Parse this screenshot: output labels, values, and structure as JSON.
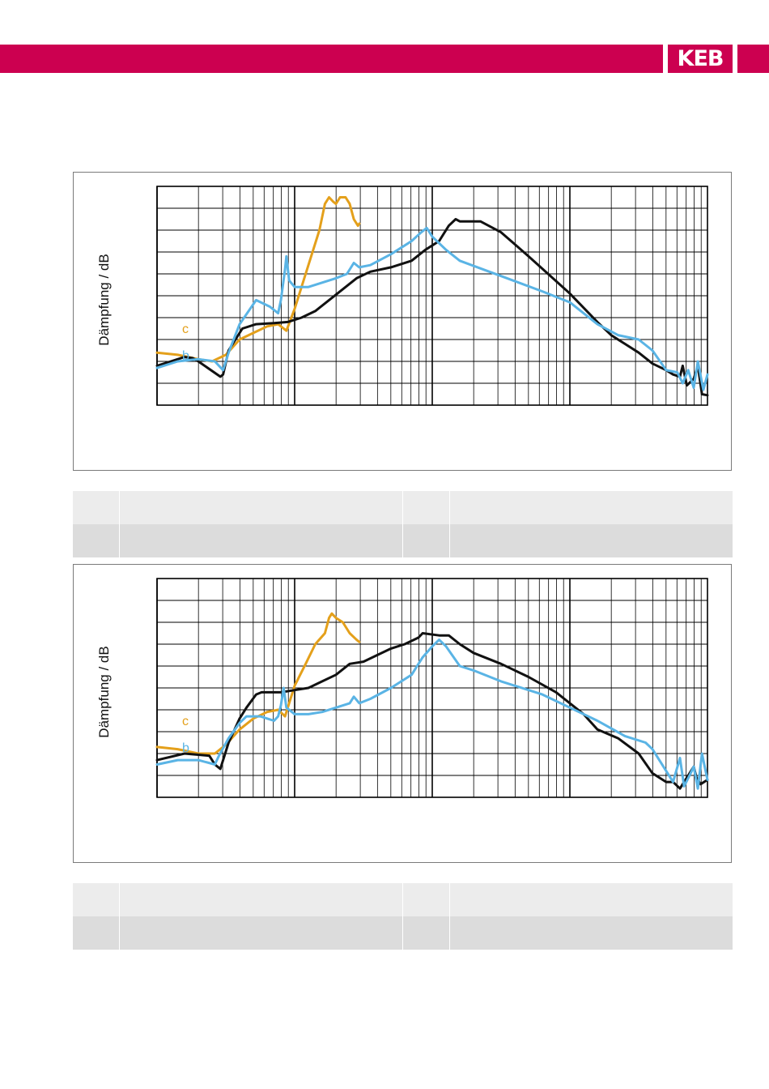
{
  "header": {
    "logo_text": "KEB",
    "brand_color": "#cc0050"
  },
  "colors": {
    "black_series": "#111111",
    "b_series": "#5ab4e5",
    "c_series": "#e4a01b",
    "grid": "#000000"
  },
  "chart_data": [
    {
      "type": "line",
      "title": "",
      "xlabel": "",
      "ylabel": "Dämpfung / dB",
      "xscale": "log",
      "xlim_decades": [
        0,
        4
      ],
      "y_divisions": 10,
      "grid": true,
      "series": [
        {
          "name": "",
          "color": "#111111",
          "points": [
            [
              0,
              -62
            ],
            [
              0.1,
              -60
            ],
            [
              0.2,
              -58
            ],
            [
              0.26,
              -58.5
            ],
            [
              0.3,
              -60
            ],
            [
              0.46,
              -67
            ],
            [
              0.48,
              -66
            ],
            [
              0.52,
              -55
            ],
            [
              0.62,
              -45
            ],
            [
              0.72,
              -43
            ],
            [
              0.85,
              -42.5
            ],
            [
              0.95,
              -42
            ],
            [
              1.05,
              -40
            ],
            [
              1.15,
              -37
            ],
            [
              1.25,
              -32
            ],
            [
              1.35,
              -27
            ],
            [
              1.45,
              -22
            ],
            [
              1.55,
              -19
            ],
            [
              1.7,
              -17
            ],
            [
              1.85,
              -14
            ],
            [
              1.95,
              -9
            ],
            [
              2.05,
              -5
            ],
            [
              2.12,
              2
            ],
            [
              2.17,
              5
            ],
            [
              2.2,
              4
            ],
            [
              2.35,
              4
            ],
            [
              2.5,
              -1
            ],
            [
              2.7,
              -12
            ],
            [
              3.0,
              -29
            ],
            [
              3.2,
              -42
            ],
            [
              3.3,
              -48
            ],
            [
              3.4,
              -52
            ],
            [
              3.5,
              -56
            ],
            [
              3.6,
              -61
            ],
            [
              3.7,
              -64
            ],
            [
              3.75,
              -66
            ],
            [
              3.8,
              -67
            ],
            [
              3.82,
              -62
            ],
            [
              3.85,
              -71
            ],
            [
              3.9,
              -68
            ],
            [
              3.93,
              -62
            ],
            [
              3.96,
              -75
            ],
            [
              4.0,
              -75.5
            ]
          ]
        },
        {
          "name": "b",
          "color": "#5ab4e5",
          "points": [
            [
              0,
              -63
            ],
            [
              0.15,
              -60
            ],
            [
              0.3,
              -59
            ],
            [
              0.42,
              -60
            ],
            [
              0.48,
              -64
            ],
            [
              0.52,
              -56
            ],
            [
              0.6,
              -43
            ],
            [
              0.72,
              -32
            ],
            [
              0.82,
              -35
            ],
            [
              0.88,
              -38
            ],
            [
              0.9,
              -32
            ],
            [
              0.93,
              -18
            ],
            [
              0.94,
              -12
            ],
            [
              0.96,
              -23
            ],
            [
              1.0,
              -26
            ],
            [
              1.1,
              -26
            ],
            [
              1.2,
              -24
            ],
            [
              1.3,
              -22
            ],
            [
              1.38,
              -20
            ],
            [
              1.43,
              -15
            ],
            [
              1.47,
              -17
            ],
            [
              1.55,
              -16
            ],
            [
              1.7,
              -11
            ],
            [
              1.85,
              -5
            ],
            [
              1.92,
              -1
            ],
            [
              1.96,
              1
            ],
            [
              2.0,
              -3
            ],
            [
              2.1,
              -9
            ],
            [
              2.2,
              -14
            ],
            [
              2.5,
              -21
            ],
            [
              2.8,
              -28
            ],
            [
              3.0,
              -33
            ],
            [
              3.2,
              -43
            ],
            [
              3.35,
              -48
            ],
            [
              3.5,
              -50
            ],
            [
              3.6,
              -55
            ],
            [
              3.7,
              -64
            ],
            [
              3.78,
              -65
            ],
            [
              3.82,
              -70
            ],
            [
              3.86,
              -64
            ],
            [
              3.9,
              -72
            ],
            [
              3.93,
              -60
            ],
            [
              3.97,
              -73
            ],
            [
              4.0,
              -66
            ]
          ]
        },
        {
          "name": "c",
          "color": "#e4a01b",
          "points": [
            [
              0,
              -56
            ],
            [
              0.15,
              -57
            ],
            [
              0.3,
              -59
            ],
            [
              0.4,
              -60
            ],
            [
              0.5,
              -57
            ],
            [
              0.6,
              -50
            ],
            [
              0.7,
              -47
            ],
            [
              0.8,
              -44
            ],
            [
              0.88,
              -43
            ],
            [
              0.94,
              -46
            ],
            [
              1.0,
              -36
            ],
            [
              1.1,
              -16
            ],
            [
              1.18,
              0
            ],
            [
              1.22,
              12
            ],
            [
              1.25,
              15
            ],
            [
              1.28,
              13
            ],
            [
              1.3,
              12
            ],
            [
              1.33,
              15
            ],
            [
              1.37,
              15
            ],
            [
              1.4,
              12
            ],
            [
              1.43,
              5
            ],
            [
              1.46,
              2
            ],
            [
              1.47,
              3
            ]
          ]
        }
      ],
      "annotations": [
        {
          "text": "c",
          "color": "#e4a01b"
        },
        {
          "text": "b",
          "color": "#5ab4e5"
        }
      ]
    },
    {
      "type": "line",
      "title": "",
      "xlabel": "",
      "ylabel": "Dämpfung / dB",
      "xscale": "log",
      "xlim_decades": [
        0,
        4
      ],
      "y_divisions": 10,
      "grid": true,
      "series": [
        {
          "name": "",
          "color": "#111111",
          "points": [
            [
              0,
              -63
            ],
            [
              0.2,
              -60
            ],
            [
              0.38,
              -61
            ],
            [
              0.42,
              -65
            ],
            [
              0.46,
              -67
            ],
            [
              0.52,
              -55
            ],
            [
              0.6,
              -44
            ],
            [
              0.65,
              -39
            ],
            [
              0.72,
              -33
            ],
            [
              0.76,
              -32
            ],
            [
              0.9,
              -32
            ],
            [
              1.0,
              -31
            ],
            [
              1.1,
              -30
            ],
            [
              1.2,
              -27
            ],
            [
              1.3,
              -24
            ],
            [
              1.4,
              -19
            ],
            [
              1.5,
              -18
            ],
            [
              1.6,
              -15
            ],
            [
              1.7,
              -12
            ],
            [
              1.8,
              -10
            ],
            [
              1.9,
              -7
            ],
            [
              1.93,
              -5
            ],
            [
              2.05,
              -6
            ],
            [
              2.12,
              -6
            ],
            [
              2.2,
              -10
            ],
            [
              2.3,
              -14
            ],
            [
              2.5,
              -19
            ],
            [
              2.7,
              -25
            ],
            [
              2.9,
              -32
            ],
            [
              3.1,
              -42
            ],
            [
              3.2,
              -49
            ],
            [
              3.35,
              -53
            ],
            [
              3.5,
              -60
            ],
            [
              3.6,
              -69
            ],
            [
              3.7,
              -73
            ],
            [
              3.75,
              -73
            ],
            [
              3.8,
              -76
            ],
            [
              3.83,
              -73
            ],
            [
              3.86,
              -70
            ],
            [
              3.9,
              -66
            ],
            [
              3.92,
              -71
            ],
            [
              3.95,
              -74
            ],
            [
              4.0,
              -72
            ]
          ]
        },
        {
          "name": "b",
          "color": "#5ab4e5",
          "points": [
            [
              0,
              -65
            ],
            [
              0.15,
              -63
            ],
            [
              0.3,
              -63
            ],
            [
              0.42,
              -65
            ],
            [
              0.45,
              -61
            ],
            [
              0.52,
              -53
            ],
            [
              0.6,
              -46
            ],
            [
              0.65,
              -43
            ],
            [
              0.75,
              -43
            ],
            [
              0.85,
              -45
            ],
            [
              0.88,
              -43
            ],
            [
              0.9,
              -38
            ],
            [
              0.92,
              -30
            ],
            [
              0.94,
              -39
            ],
            [
              1.0,
              -42
            ],
            [
              1.1,
              -42
            ],
            [
              1.2,
              -41
            ],
            [
              1.3,
              -39
            ],
            [
              1.4,
              -37
            ],
            [
              1.43,
              -34
            ],
            [
              1.47,
              -37
            ],
            [
              1.55,
              -35
            ],
            [
              1.7,
              -30
            ],
            [
              1.85,
              -24
            ],
            [
              1.93,
              -16
            ],
            [
              2.0,
              -11
            ],
            [
              2.05,
              -8
            ],
            [
              2.1,
              -11
            ],
            [
              2.2,
              -20
            ],
            [
              2.3,
              -22
            ],
            [
              2.5,
              -27
            ],
            [
              2.8,
              -33
            ],
            [
              3.0,
              -39
            ],
            [
              3.2,
              -45
            ],
            [
              3.4,
              -52
            ],
            [
              3.55,
              -55
            ],
            [
              3.6,
              -58
            ],
            [
              3.7,
              -68
            ],
            [
              3.75,
              -73
            ],
            [
              3.8,
              -62
            ],
            [
              3.83,
              -75
            ],
            [
              3.87,
              -70
            ],
            [
              3.9,
              -66
            ],
            [
              3.93,
              -76
            ],
            [
              3.96,
              -60
            ],
            [
              4.0,
              -72
            ]
          ]
        },
        {
          "name": "c",
          "color": "#e4a01b",
          "points": [
            [
              0,
              -57
            ],
            [
              0.15,
              -58
            ],
            [
              0.3,
              -60
            ],
            [
              0.42,
              -60
            ],
            [
              0.5,
              -56
            ],
            [
              0.6,
              -49
            ],
            [
              0.7,
              -44
            ],
            [
              0.8,
              -41
            ],
            [
              0.88,
              -40
            ],
            [
              0.93,
              -43
            ],
            [
              1.0,
              -29
            ],
            [
              1.08,
              -19
            ],
            [
              1.15,
              -10
            ],
            [
              1.22,
              -5
            ],
            [
              1.25,
              2
            ],
            [
              1.27,
              4
            ],
            [
              1.3,
              2
            ],
            [
              1.35,
              0
            ],
            [
              1.4,
              -5
            ],
            [
              1.45,
              -8
            ],
            [
              1.47,
              -9
            ]
          ]
        }
      ],
      "annotations": [
        {
          "text": "c",
          "color": "#e4a01b"
        },
        {
          "text": "b",
          "color": "#5ab4e5"
        }
      ]
    }
  ],
  "info_tables": [
    {
      "rows": [
        {
          "c1": "",
          "c2": "",
          "c3": "",
          "c4": ""
        },
        {
          "c1": "",
          "c2": "",
          "c3": "",
          "c4": ""
        }
      ]
    },
    {
      "rows": [
        {
          "c1": "",
          "c2": "",
          "c3": "",
          "c4": ""
        },
        {
          "c1": "",
          "c2": "",
          "c3": "",
          "c4": ""
        }
      ]
    }
  ]
}
